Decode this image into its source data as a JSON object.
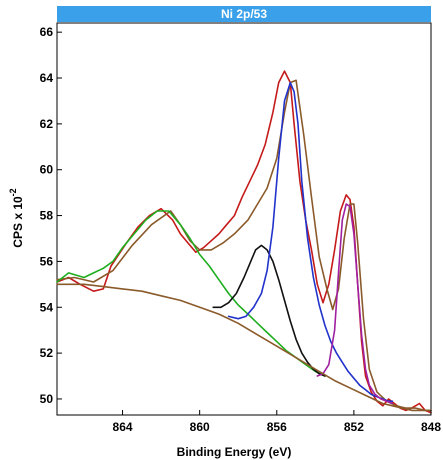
{
  "chart_data": {
    "type": "line",
    "title": "Ni 2p/53",
    "xlabel": "Binding Energy (eV)",
    "ylabel": "CPS x 10",
    "ylabel_exp": "-2",
    "xlim": [
      867.4,
      848
    ],
    "ylim": [
      49.3,
      66.4
    ],
    "xticks": [
      864,
      860,
      856,
      852,
      848
    ],
    "yticks": [
      50,
      52,
      54,
      56,
      58,
      60,
      62,
      64,
      66
    ],
    "grid": false,
    "title_bar_color": "#3aa0ea",
    "series": [
      {
        "color": "#c51a1a",
        "x": [
          867.4,
          866.8,
          866.2,
          865.5,
          865.0,
          864.6,
          864.2,
          863.8,
          863.2,
          862.6,
          862.0,
          861.4,
          861.0,
          860.6,
          860.2,
          859.8,
          859.4,
          859.0,
          858.6,
          858.2,
          857.8,
          857.4,
          857.0,
          856.6,
          856.2,
          855.9,
          855.6,
          855.3,
          855.1,
          854.8,
          854.5,
          854.2,
          853.9,
          853.6,
          853.3,
          853.0,
          852.7,
          852.4,
          852.2,
          852.0,
          851.8,
          851.6,
          851.4,
          851.1,
          850.8,
          850.5,
          850.2,
          849.9,
          849.6,
          849.3,
          849.0,
          848.6,
          848.3,
          848.0
        ],
        "y": [
          55.1,
          55.3,
          55.0,
          54.7,
          54.8,
          55.8,
          56.3,
          56.8,
          57.5,
          58.0,
          58.3,
          57.8,
          57.2,
          56.8,
          56.4,
          56.6,
          56.9,
          57.2,
          57.6,
          58.0,
          58.8,
          59.5,
          60.2,
          61.1,
          62.5,
          63.8,
          64.3,
          63.8,
          62.0,
          59.5,
          57.8,
          56.5,
          55.0,
          54.2,
          55.0,
          56.5,
          58.2,
          58.9,
          58.7,
          57.5,
          55.0,
          52.5,
          51.0,
          50.3,
          49.9,
          49.7,
          50.0,
          49.8,
          49.6,
          49.5,
          49.6,
          49.8,
          49.5,
          49.4
        ]
      },
      {
        "color": "#8b5a2b",
        "x": [
          867.4,
          866.5,
          865.5,
          864.5,
          863.5,
          862.5,
          861.5,
          861.0,
          860.5,
          860.0,
          859.4,
          858.8,
          858.2,
          857.5,
          857.0,
          856.5,
          856.0,
          855.6,
          855.3,
          855.0,
          854.6,
          854.2,
          853.8,
          853.4,
          853.1,
          852.8,
          852.5,
          852.2,
          852.0,
          851.8,
          851.5,
          851.2,
          850.8,
          850.3,
          849.8,
          849.3,
          848.8,
          848.3,
          848.0
        ],
        "y": [
          55.2,
          55.3,
          55.1,
          55.6,
          56.7,
          57.6,
          58.2,
          57.6,
          56.9,
          56.5,
          56.5,
          56.8,
          57.2,
          57.8,
          58.5,
          59.2,
          60.5,
          62.5,
          63.8,
          63.9,
          61.5,
          58.8,
          56.2,
          54.8,
          53.9,
          54.8,
          57.0,
          58.5,
          58.5,
          56.8,
          53.5,
          51.3,
          50.3,
          49.9,
          49.7,
          49.6,
          49.6,
          49.5,
          49.5
        ]
      },
      {
        "color": "#1fae1f",
        "x": [
          867.4,
          866.8,
          866.0,
          865.5,
          865.0,
          864.5,
          864.0,
          863.4,
          862.8,
          862.2,
          861.6,
          861.0,
          860.5,
          860.0,
          859.5,
          859.0,
          858.5,
          858.0,
          857.5,
          857.0,
          856.5,
          856.0,
          855.5,
          855.0,
          854.5,
          854.0,
          853.5
        ],
        "y": [
          55.1,
          55.5,
          55.3,
          55.5,
          55.7,
          56.0,
          56.6,
          57.2,
          57.8,
          58.2,
          58.2,
          57.6,
          57.0,
          56.3,
          55.8,
          55.2,
          54.6,
          54.1,
          53.7,
          53.3,
          52.9,
          52.5,
          52.1,
          51.8,
          51.5,
          51.2,
          51.0
        ]
      },
      {
        "color": "#111111",
        "x": [
          859.3,
          858.9,
          858.5,
          858.1,
          857.7,
          857.4,
          857.1,
          856.8,
          856.5,
          856.2,
          855.9,
          855.6,
          855.3,
          855.0,
          854.7,
          854.4,
          854.1,
          853.8,
          853.5
        ],
        "y": [
          54.0,
          54.0,
          54.2,
          54.6,
          55.3,
          55.9,
          56.5,
          56.7,
          56.5,
          56.0,
          55.2,
          54.3,
          53.4,
          52.6,
          52.0,
          51.6,
          51.3,
          51.1,
          51.0
        ]
      },
      {
        "color": "#2233cc",
        "x": [
          858.5,
          858.0,
          857.6,
          857.2,
          856.8,
          856.5,
          856.2,
          855.9,
          855.6,
          855.3,
          855.1,
          854.9,
          854.7,
          854.4,
          854.1,
          853.8,
          853.5,
          853.2,
          852.9,
          852.6,
          852.3,
          852.0,
          851.7,
          851.4,
          851.1,
          850.8,
          850.5,
          850.2,
          850.0
        ],
        "y": [
          53.6,
          53.5,
          53.6,
          54.0,
          54.6,
          55.6,
          57.5,
          60.5,
          63.0,
          63.8,
          63.4,
          62.0,
          59.5,
          57.0,
          55.3,
          54.1,
          53.2,
          52.5,
          52.0,
          51.6,
          51.2,
          50.9,
          50.6,
          50.4,
          50.2,
          50.1,
          50.0,
          49.9,
          49.9
        ]
      },
      {
        "color": "#a020a0",
        "x": [
          853.9,
          853.6,
          853.3,
          853.0,
          852.8,
          852.6,
          852.4,
          852.2,
          852.0,
          851.8,
          851.6,
          851.4,
          851.2,
          850.9,
          850.6,
          850.3,
          850.0
        ],
        "y": [
          51.0,
          51.1,
          51.5,
          53.0,
          55.5,
          57.8,
          58.5,
          58.4,
          57.2,
          55.0,
          52.8,
          51.3,
          50.6,
          50.2,
          50.0,
          49.9,
          49.8
        ]
      },
      {
        "color": "#8b5a2b",
        "x": [
          867.4,
          866.0,
          865.0,
          864.0,
          863.0,
          862.0,
          861.0,
          860.0,
          859.0,
          858.0,
          857.0,
          856.0,
          855.0,
          854.0,
          853.0,
          852.0,
          851.5,
          851.0,
          850.5,
          850.0,
          849.5,
          849.0,
          848.5,
          848.0
        ],
        "y": [
          55.0,
          55.0,
          54.9,
          54.8,
          54.7,
          54.5,
          54.3,
          54.0,
          53.7,
          53.3,
          52.8,
          52.3,
          51.8,
          51.3,
          50.8,
          50.4,
          50.2,
          50.0,
          49.8,
          49.7,
          49.6,
          49.5,
          49.5,
          49.5
        ]
      }
    ]
  }
}
